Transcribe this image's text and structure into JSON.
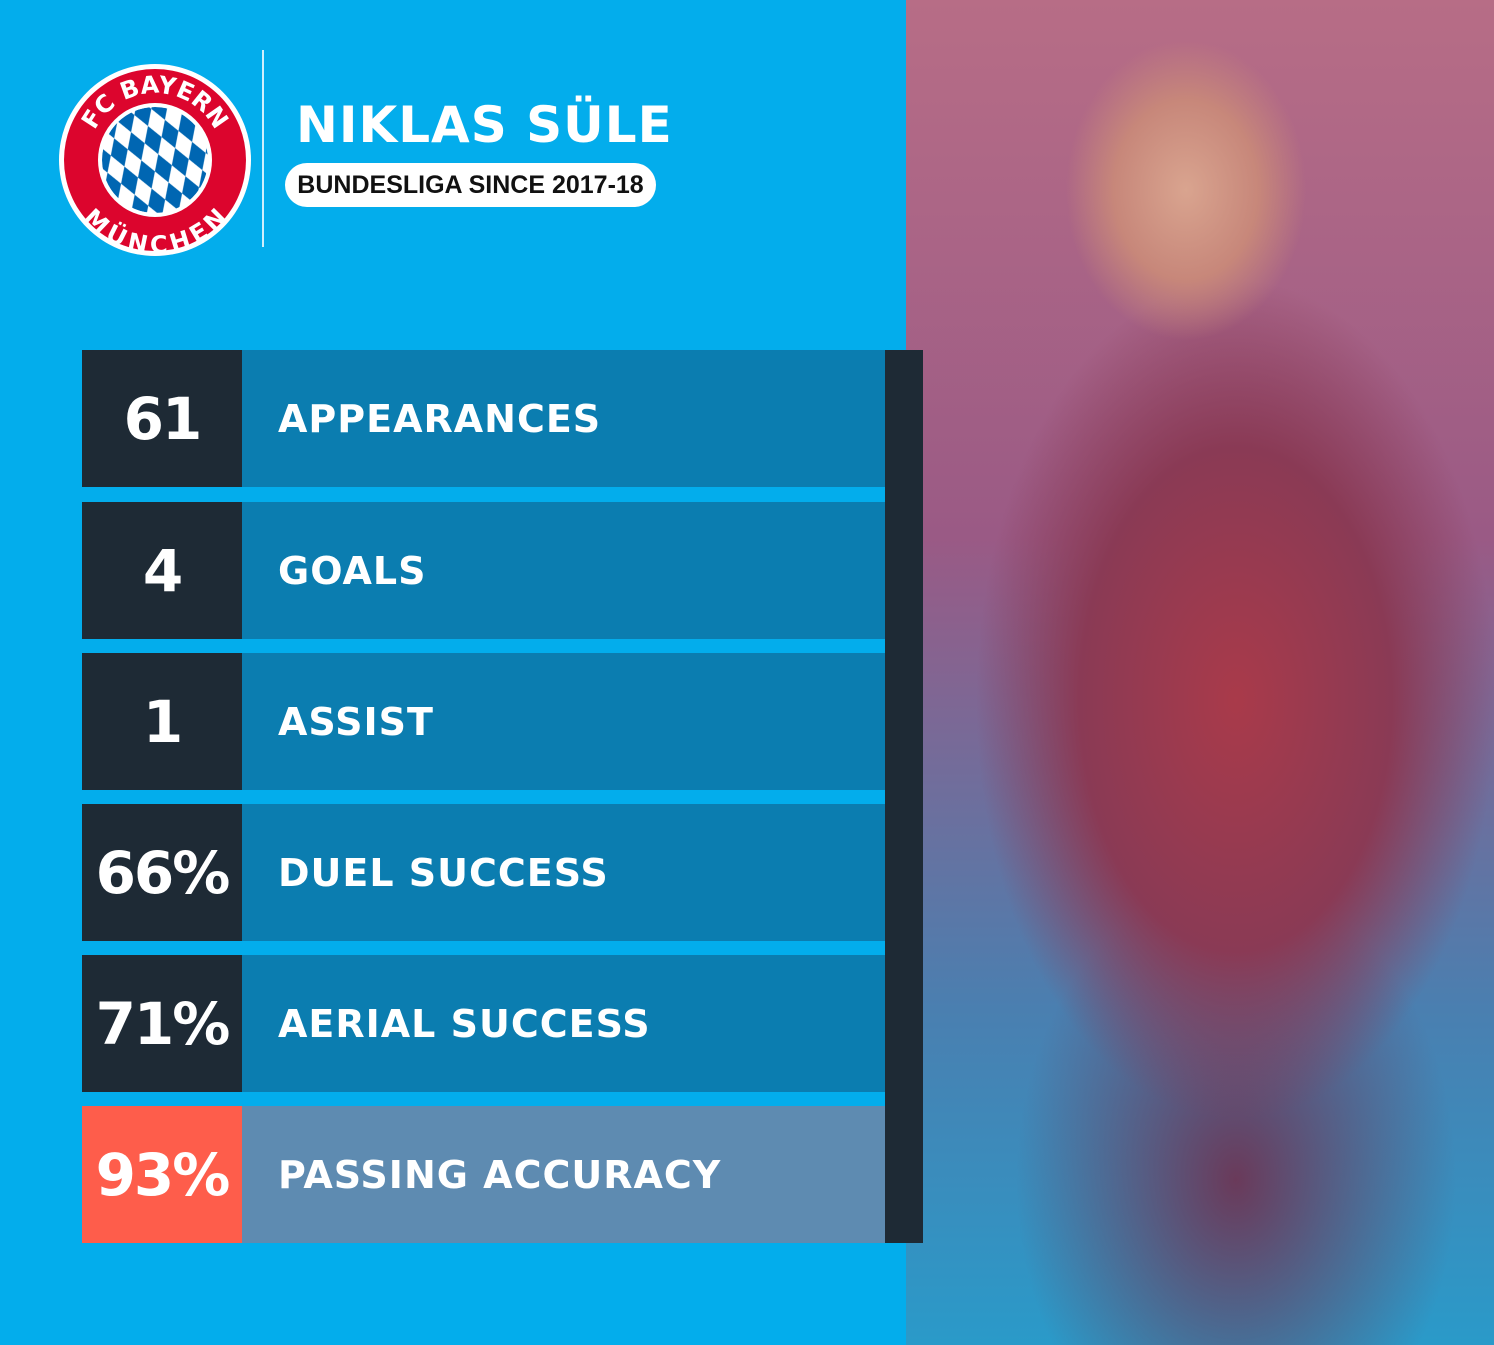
{
  "logo": {
    "top_text": "FC BAYERN",
    "bottom_text": "MÜNCHEN",
    "colors": {
      "ring": "#dc052d",
      "inner": "#0066b2"
    }
  },
  "player": {
    "name": "NIKLAS SÜLE",
    "subtitle": "BUNDESLIGA SINCE 2017-18"
  },
  "stats": [
    {
      "value": "61",
      "label": "APPEARANCES"
    },
    {
      "value": "4",
      "label": "GOALS"
    },
    {
      "value": "1",
      "label": "ASSIST"
    },
    {
      "value": "66%",
      "label": "DUEL SUCCESS"
    },
    {
      "value": "71%",
      "label": "AERIAL SUCCESS"
    },
    {
      "value": "93%",
      "label": "PASSING ACCURACY",
      "highlight": true
    }
  ],
  "colors": {
    "background": "#03adec",
    "number_box": "#1e2a35",
    "label_box": "#0b7db0",
    "highlight_number": "#fe5d4b",
    "highlight_label": "#5e8bb1"
  }
}
